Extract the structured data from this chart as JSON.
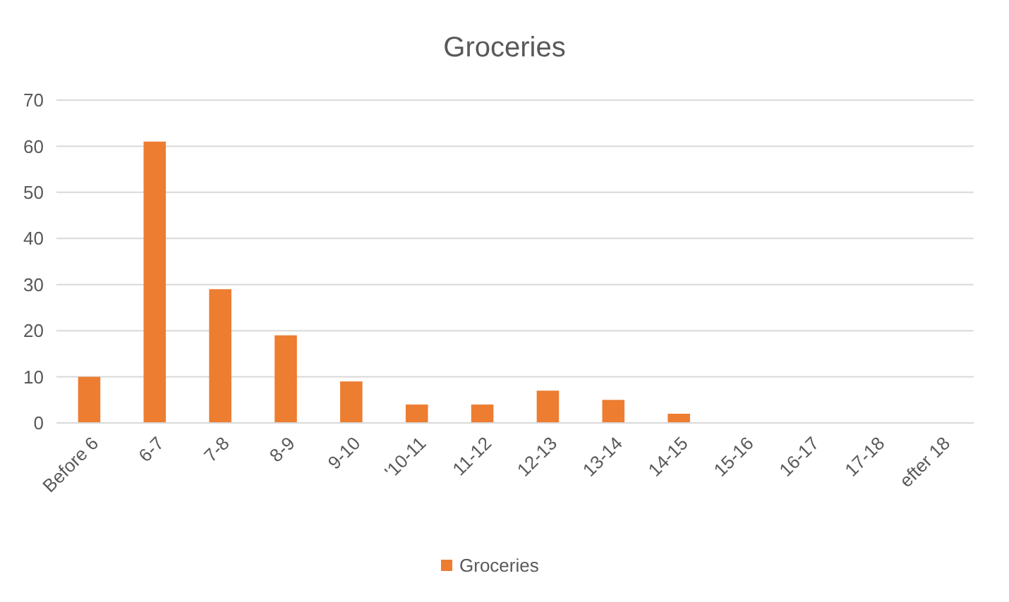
{
  "chart_data": {
    "type": "bar",
    "title": "Groceries",
    "categories": [
      "Before 6",
      "6-7",
      "7-8",
      "8-9",
      "9-10",
      "'10-11",
      "11-12",
      "12-13",
      "13-14",
      "14-15",
      "15-16",
      "16-17",
      "17-18",
      "efter 18"
    ],
    "series": [
      {
        "name": "Groceries",
        "color": "#ed7d31",
        "values": [
          10,
          61,
          29,
          19,
          9,
          4,
          4,
          7,
          5,
          2,
          0,
          0,
          0,
          0
        ]
      }
    ],
    "ylim": [
      0,
      70
    ],
    "yticks": [
      0,
      10,
      20,
      30,
      40,
      50,
      60,
      70
    ],
    "grid": "y",
    "legend": "bottom"
  }
}
